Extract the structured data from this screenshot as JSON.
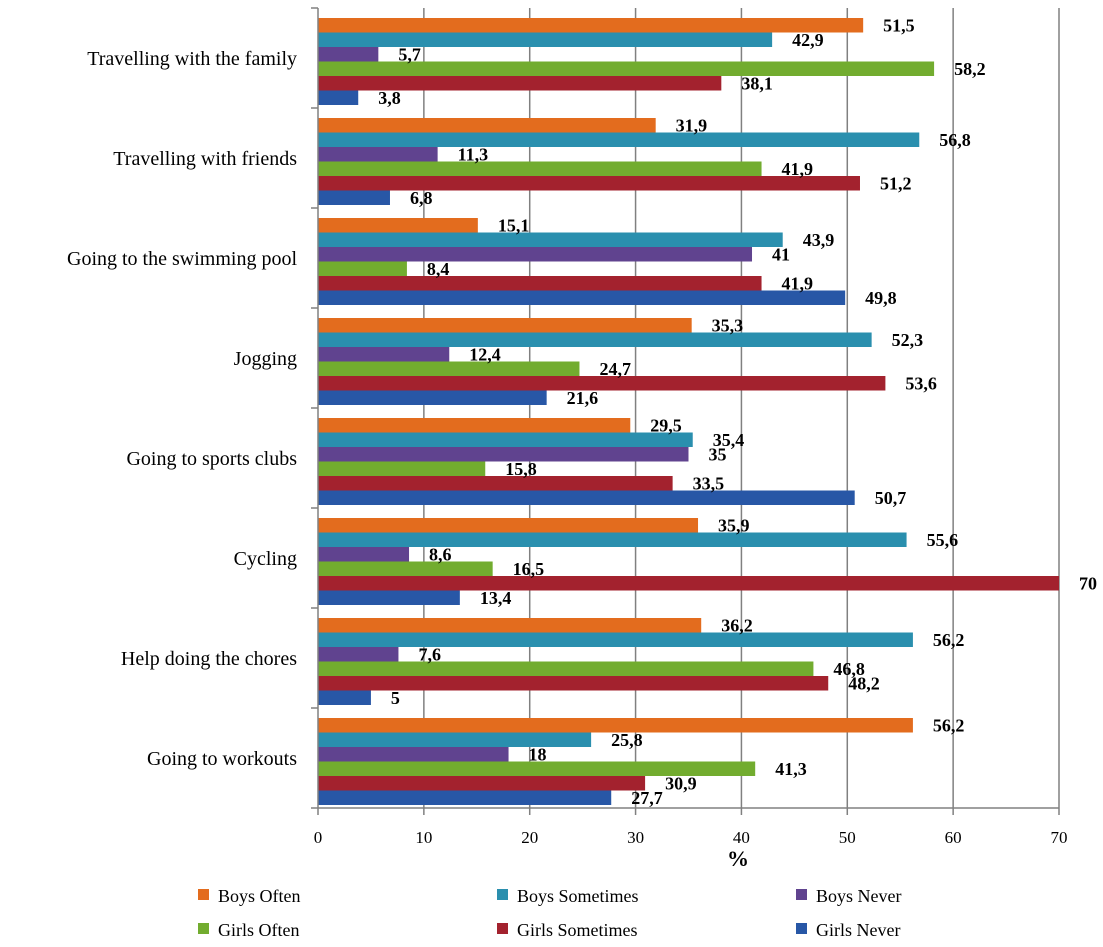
{
  "chart_data": {
    "type": "bar",
    "orientation": "horizontal",
    "xlabel": "%",
    "ylabel": "",
    "xlim": [
      0,
      70
    ],
    "xticks": [
      0,
      10,
      20,
      30,
      40,
      50,
      60,
      70
    ],
    "grid": "vertical",
    "legend_position": "bottom",
    "decimal_separator": ",",
    "categories": [
      "Travelling with the family",
      "Travelling with friends",
      "Going to the swimming pool",
      "Jogging",
      "Going to sports clubs",
      "Cycling",
      "Help doing the chores",
      "Going to workouts"
    ],
    "series": [
      {
        "name": "Boys Often",
        "color": "#E36C1E",
        "values": [
          51.5,
          31.9,
          15.1,
          35.3,
          29.5,
          35.9,
          36.2,
          56.2
        ]
      },
      {
        "name": "Boys Sometimes",
        "color": "#2A8FAE",
        "values": [
          42.9,
          56.8,
          43.9,
          52.3,
          35.4,
          55.6,
          56.2,
          25.8
        ]
      },
      {
        "name": "Boys Never",
        "color": "#60438F",
        "values": [
          5.7,
          11.3,
          41,
          12.4,
          35,
          8.6,
          7.6,
          18
        ]
      },
      {
        "name": "Girls Often",
        "color": "#72AC2F",
        "values": [
          58.2,
          41.9,
          8.4,
          24.7,
          15.8,
          16.5,
          46.8,
          41.3
        ]
      },
      {
        "name": "Girls Sometimes",
        "color": "#A3222E",
        "values": [
          38.1,
          51.2,
          41.9,
          53.6,
          33.5,
          70,
          48.2,
          30.9
        ]
      },
      {
        "name": "Girls Never",
        "color": "#2857A6",
        "values": [
          3.8,
          6.8,
          49.8,
          21.6,
          50.7,
          13.4,
          5,
          27.7
        ]
      }
    ]
  }
}
